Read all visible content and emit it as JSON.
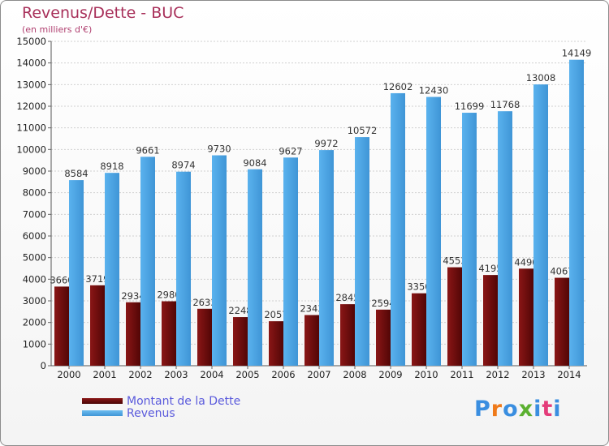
{
  "header": {
    "title": "Revenus/Dette - BUC",
    "subtitle": "(en milliers d'€)"
  },
  "colors": {
    "debt": "#6e0d0d",
    "revenue": "#4da6e6",
    "grid": "#d0d0d0",
    "axis_text": "#222222",
    "value_text": "#333333"
  },
  "legend": {
    "debt_label": "Montant de la Dette",
    "revenue_label": "Revenus"
  },
  "brand": {
    "logo_text": "Proxiti",
    "logo_colors": [
      "#3a8ee0",
      "#ef7a1a",
      "#3a8ee0",
      "#5bb030",
      "#3a8ee0",
      "#e43c7a",
      "#3a8ee0"
    ]
  },
  "chart_data": {
    "type": "bar",
    "title": "Revenus/Dette - BUC",
    "subtitle": "(en milliers d'€)",
    "xlabel": "",
    "ylabel": "",
    "ylim": [
      0,
      15000
    ],
    "yticks": [
      0,
      1000,
      2000,
      3000,
      4000,
      5000,
      6000,
      7000,
      8000,
      9000,
      10000,
      11000,
      12000,
      13000,
      14000,
      15000
    ],
    "grid": true,
    "categories": [
      "2000",
      "2001",
      "2002",
      "2003",
      "2004",
      "2005",
      "2006",
      "2007",
      "2008",
      "2009",
      "2010",
      "2011",
      "2012",
      "2013",
      "2014"
    ],
    "series": [
      {
        "name": "Montant de la Dette",
        "values": [
          3660,
          3719,
          2934,
          2980,
          2633,
          2248,
          2057,
          2343,
          2845,
          2594,
          3350,
          4553,
          4195,
          4490,
          4067
        ]
      },
      {
        "name": "Revenus",
        "values": [
          8584,
          8918,
          9661,
          8974,
          9730,
          9084,
          9627,
          9972,
          10572,
          12602,
          12430,
          11699,
          11768,
          13008,
          14149
        ]
      }
    ]
  }
}
